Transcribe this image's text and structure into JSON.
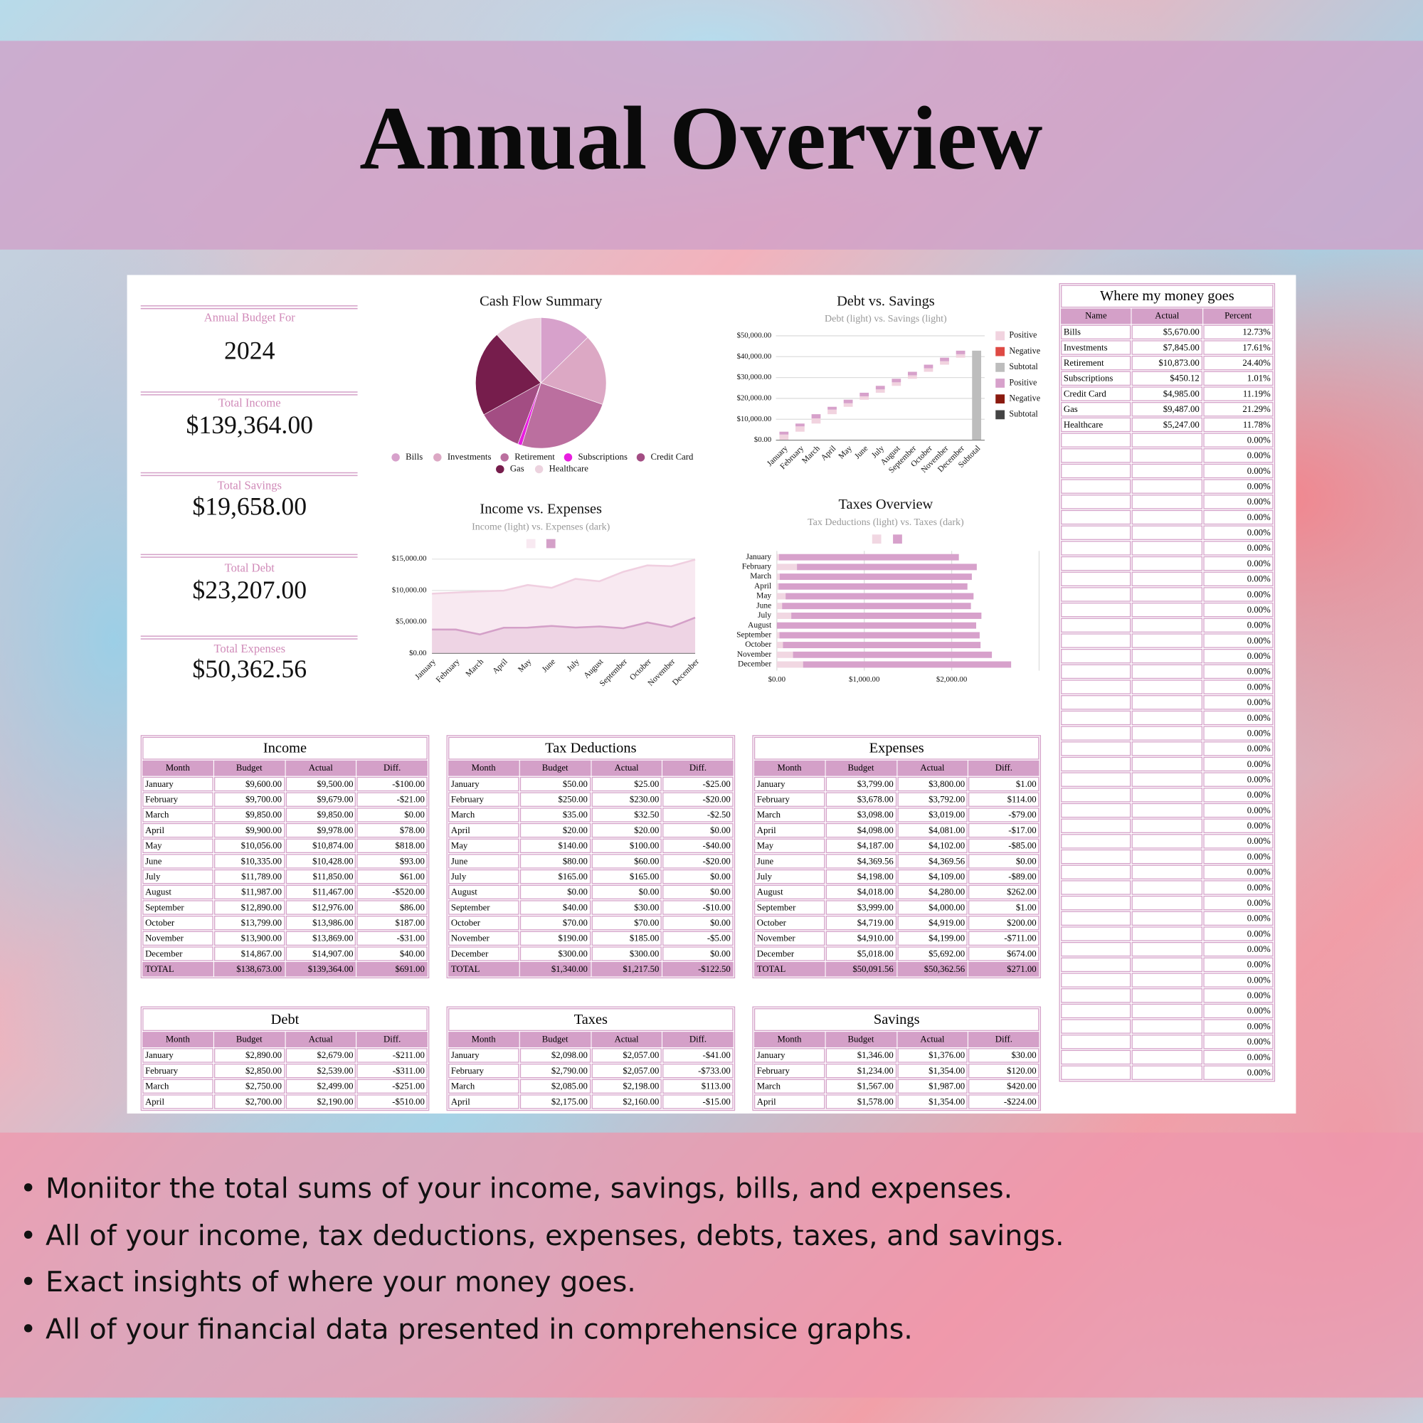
{
  "header": {
    "title": "Annual Overview"
  },
  "summary": {
    "label": "Annual Budget For",
    "year": "2024",
    "items": [
      {
        "label": "Total Income",
        "value": "$139,364.00"
      },
      {
        "label": "Total Savings",
        "value": "$19,658.00"
      },
      {
        "label": "Total Debt",
        "value": "$23,207.00"
      },
      {
        "label": "Total Expenses",
        "value": "$50,362.56"
      }
    ]
  },
  "chart_data": [
    {
      "type": "pie",
      "title": "Cash Flow Summary",
      "categories": [
        "Bills",
        "Investments",
        "Retirement",
        "Subscriptions",
        "Credit Card",
        "Gas",
        "Healthcare"
      ],
      "values": [
        5670,
        7845,
        10873,
        450.12,
        4985,
        9487,
        5247
      ],
      "colors": [
        "#d7a1cb",
        "#dca8c4",
        "#bb6f9f",
        "#e81ee0",
        "#a34d83",
        "#761d4c",
        "#ecd2de"
      ]
    },
    {
      "type": "waterfall",
      "title": "Debt vs. Savings",
      "subtitle": "Debt (light) vs. Savings (light)",
      "categories": [
        "January",
        "February",
        "March",
        "April",
        "May",
        "June",
        "July",
        "August",
        "September",
        "October",
        "November",
        "December"
      ],
      "subtotal_label": "Subtotal",
      "subtotal": 42865,
      "subtotal_color": "#bdbdbd",
      "series": [
        {
          "color": "#f1d3df",
          "values": [
            2679,
            2539,
            2499,
            2190,
            1700,
            1650,
            1600,
            1700,
            1650,
            1700,
            1650,
            1650
          ]
        },
        {
          "color": "#d7a1cb",
          "values": [
            1376,
            1354,
            1987,
            1354,
            1700,
            1690,
            1700,
            1700,
            1690,
            1700,
            1700,
            1707
          ]
        }
      ],
      "legend": [
        {
          "name": "Positive",
          "color": "#f1d3df"
        },
        {
          "name": "Negative",
          "color": "#de4a44"
        },
        {
          "name": "Subtotal",
          "color": "#bdbdbd"
        },
        {
          "name": "Positive",
          "color": "#d7a1cb"
        },
        {
          "name": "Negative",
          "color": "#8a1a0f"
        },
        {
          "name": "Subtotal",
          "color": "#444444"
        }
      ],
      "ylim": [
        0,
        50000
      ],
      "yticks": [
        {
          "value": 0,
          "label": "$0.00"
        },
        {
          "value": 10000,
          "label": "$10,000.00"
        },
        {
          "value": 20000,
          "label": "$20,000.00"
        },
        {
          "value": 30000,
          "label": "$30,000.00"
        },
        {
          "value": 40000,
          "label": "$40,000.00"
        },
        {
          "value": 50000,
          "label": "$50,000.00"
        }
      ],
      "grid": true
    },
    {
      "type": "area",
      "title": "Income vs. Expenses",
      "subtitle": "Income (light) vs. Expenses (dark)",
      "categories": [
        "January",
        "February",
        "March",
        "April",
        "May",
        "June",
        "July",
        "August",
        "September",
        "October",
        "November",
        "December"
      ],
      "series": [
        {
          "color": "#f0cfe0",
          "fill": "#f8e9f1",
          "values": [
            9500,
            9679,
            9850,
            9978,
            10874,
            10428,
            11850,
            11467,
            12976,
            13986,
            13869,
            14907
          ]
        },
        {
          "color": "#d4a0c8",
          "fill": "#eed4e4",
          "values": [
            3800,
            3792,
            3019,
            4081,
            4102,
            4369.56,
            4109,
            4280,
            4000,
            4919,
            4199,
            5692
          ]
        }
      ],
      "ylim": [
        0,
        15000
      ],
      "yticks": [
        {
          "value": 0,
          "label": "$0.00"
        },
        {
          "value": 5000,
          "label": "$5,000.00"
        },
        {
          "value": 10000,
          "label": "$10,000.00"
        },
        {
          "value": 15000,
          "label": "$15,000.00"
        }
      ],
      "grid": true
    },
    {
      "type": "hbar-stacked",
      "title": "Taxes Overview",
      "subtitle": "Tax Deductions (light) vs. Taxes (dark)",
      "categories": [
        "January",
        "February",
        "March",
        "April",
        "May",
        "June",
        "July",
        "August",
        "September",
        "October",
        "November",
        "December"
      ],
      "series": [
        {
          "color": "#f1d7e2",
          "values": [
            25,
            230,
            32.5,
            20,
            100,
            60,
            165,
            0,
            30,
            70,
            185,
            300
          ]
        },
        {
          "color": "#d7a1cb",
          "values": [
            2057,
            2057,
            2198,
            2160,
            2150,
            2160,
            2175,
            2280,
            2290,
            2260,
            2275,
            2380
          ]
        }
      ],
      "xlim": [
        0,
        3000
      ],
      "xticks": [
        {
          "value": 0,
          "label": "$0.00"
        },
        {
          "value": 1000,
          "label": "$1,000.00"
        },
        {
          "value": 2000,
          "label": "$2,000.00"
        }
      ],
      "grid": true
    }
  ],
  "tables": [
    {
      "title": "Income",
      "columns": [
        "Month",
        "Budget",
        "Actual",
        "Diff."
      ],
      "rows": [
        [
          "January",
          "$9,600.00",
          "$9,500.00",
          "-$100.00"
        ],
        [
          "February",
          "$9,700.00",
          "$9,679.00",
          "-$21.00"
        ],
        [
          "March",
          "$9,850.00",
          "$9,850.00",
          "$0.00"
        ],
        [
          "April",
          "$9,900.00",
          "$9,978.00",
          "$78.00"
        ],
        [
          "May",
          "$10,056.00",
          "$10,874.00",
          "$818.00"
        ],
        [
          "June",
          "$10,335.00",
          "$10,428.00",
          "$93.00"
        ],
        [
          "July",
          "$11,789.00",
          "$11,850.00",
          "$61.00"
        ],
        [
          "August",
          "$11,987.00",
          "$11,467.00",
          "-$520.00"
        ],
        [
          "September",
          "$12,890.00",
          "$12,976.00",
          "$86.00"
        ],
        [
          "October",
          "$13,799.00",
          "$13,986.00",
          "$187.00"
        ],
        [
          "November",
          "$13,900.00",
          "$13,869.00",
          "-$31.00"
        ],
        [
          "December",
          "$14,867.00",
          "$14,907.00",
          "$40.00"
        ]
      ],
      "total": [
        "TOTAL",
        "$138,673.00",
        "$139,364.00",
        "$691.00"
      ]
    },
    {
      "title": "Tax Deductions",
      "columns": [
        "Month",
        "Budget",
        "Actual",
        "Diff."
      ],
      "rows": [
        [
          "January",
          "$50.00",
          "$25.00",
          "-$25.00"
        ],
        [
          "February",
          "$250.00",
          "$230.00",
          "-$20.00"
        ],
        [
          "March",
          "$35.00",
          "$32.50",
          "-$2.50"
        ],
        [
          "April",
          "$20.00",
          "$20.00",
          "$0.00"
        ],
        [
          "May",
          "$140.00",
          "$100.00",
          "-$40.00"
        ],
        [
          "June",
          "$80.00",
          "$60.00",
          "-$20.00"
        ],
        [
          "July",
          "$165.00",
          "$165.00",
          "$0.00"
        ],
        [
          "August",
          "$0.00",
          "$0.00",
          "$0.00"
        ],
        [
          "September",
          "$40.00",
          "$30.00",
          "-$10.00"
        ],
        [
          "October",
          "$70.00",
          "$70.00",
          "$0.00"
        ],
        [
          "November",
          "$190.00",
          "$185.00",
          "-$5.00"
        ],
        [
          "December",
          "$300.00",
          "$300.00",
          "$0.00"
        ]
      ],
      "total": [
        "TOTAL",
        "$1,340.00",
        "$1,217.50",
        "-$122.50"
      ]
    },
    {
      "title": "Expenses",
      "columns": [
        "Month",
        "Budget",
        "Actual",
        "Diff."
      ],
      "rows": [
        [
          "January",
          "$3,799.00",
          "$3,800.00",
          "$1.00"
        ],
        [
          "February",
          "$3,678.00",
          "$3,792.00",
          "$114.00"
        ],
        [
          "March",
          "$3,098.00",
          "$3,019.00",
          "-$79.00"
        ],
        [
          "April",
          "$4,098.00",
          "$4,081.00",
          "-$17.00"
        ],
        [
          "May",
          "$4,187.00",
          "$4,102.00",
          "-$85.00"
        ],
        [
          "June",
          "$4,369.56",
          "$4,369.56",
          "$0.00"
        ],
        [
          "July",
          "$4,198.00",
          "$4,109.00",
          "-$89.00"
        ],
        [
          "August",
          "$4,018.00",
          "$4,280.00",
          "$262.00"
        ],
        [
          "September",
          "$3,999.00",
          "$4,000.00",
          "$1.00"
        ],
        [
          "October",
          "$4,719.00",
          "$4,919.00",
          "$200.00"
        ],
        [
          "November",
          "$4,910.00",
          "$4,199.00",
          "-$711.00"
        ],
        [
          "December",
          "$5,018.00",
          "$5,692.00",
          "$674.00"
        ]
      ],
      "total": [
        "TOTAL",
        "$50,091.56",
        "$50,362.56",
        "$271.00"
      ]
    },
    {
      "title": "Debt",
      "columns": [
        "Month",
        "Budget",
        "Actual",
        "Diff."
      ],
      "rows": [
        [
          "January",
          "$2,890.00",
          "$2,679.00",
          "-$211.00"
        ],
        [
          "February",
          "$2,850.00",
          "$2,539.00",
          "-$311.00"
        ],
        [
          "March",
          "$2,750.00",
          "$2,499.00",
          "-$251.00"
        ],
        [
          "April",
          "$2,700.00",
          "$2,190.00",
          "-$510.00"
        ]
      ]
    },
    {
      "title": "Taxes",
      "columns": [
        "Month",
        "Budget",
        "Actual",
        "Diff."
      ],
      "rows": [
        [
          "January",
          "$2,098.00",
          "$2,057.00",
          "-$41.00"
        ],
        [
          "February",
          "$2,790.00",
          "$2,057.00",
          "-$733.00"
        ],
        [
          "March",
          "$2,085.00",
          "$2,198.00",
          "$113.00"
        ],
        [
          "April",
          "$2,175.00",
          "$2,160.00",
          "-$15.00"
        ]
      ]
    },
    {
      "title": "Savings",
      "columns": [
        "Month",
        "Budget",
        "Actual",
        "Diff."
      ],
      "rows": [
        [
          "January",
          "$1,346.00",
          "$1,376.00",
          "$30.00"
        ],
        [
          "February",
          "$1,234.00",
          "$1,354.00",
          "$120.00"
        ],
        [
          "March",
          "$1,567.00",
          "$1,987.00",
          "$420.00"
        ],
        [
          "April",
          "$1,578.00",
          "$1,354.00",
          "-$224.00"
        ]
      ]
    }
  ],
  "money_table": {
    "title": "Where my money goes",
    "columns": [
      "Name",
      "Actual",
      "Percent"
    ],
    "rows": [
      [
        "Bills",
        "$5,670.00",
        "12.73%"
      ],
      [
        "Investments",
        "$7,845.00",
        "17.61%"
      ],
      [
        "Retirement",
        "$10,873.00",
        "24.40%"
      ],
      [
        "Subscriptions",
        "$450.12",
        "1.01%"
      ],
      [
        "Credit Card",
        "$4,985.00",
        "11.19%"
      ],
      [
        "Gas",
        "$9,487.00",
        "21.29%"
      ],
      [
        "Healthcare",
        "$5,247.00",
        "11.78%"
      ]
    ],
    "empty_rows": [
      "0.00%",
      "0.00%",
      "0.00%",
      "0.00%",
      "0.00%",
      "0.00%",
      "0.00%",
      "0.00%",
      "0.00%",
      "0.00%",
      "0.00%",
      "0.00%",
      "0.00%",
      "0.00%",
      "0.00%",
      "0.00%",
      "0.00%",
      "0.00%",
      "0.00%",
      "0.00%",
      "0.00%",
      "0.00%",
      "0.00%",
      "0.00%",
      "0.00%",
      "0.00%",
      "0.00%",
      "0.00%",
      "0.00%",
      "0.00%",
      "0.00%",
      "0.00%",
      "0.00%",
      "0.00%",
      "0.00%",
      "0.00%",
      "0.00%",
      "0.00%",
      "0.00%",
      "0.00%",
      "0.00%",
      "0.00%"
    ]
  },
  "footer": {
    "bullets": [
      "• Moniitor the total sums of your income, savings, bills, and expenses.",
      "• All of your income, tax deductions, expenses, debts, taxes, and savings.",
      "• Exact insights of where your money goes.",
      "• All of your financial data presented in comprehensice graphs."
    ]
  }
}
